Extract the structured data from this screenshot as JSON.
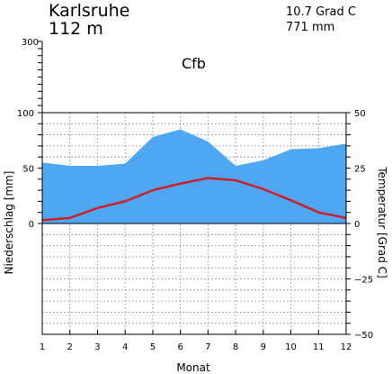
{
  "header": {
    "station": "Karlsruhe",
    "elevation": "112  m",
    "mean_temperature": "10.7  Grad C",
    "annual_precipitation": "771 mm",
    "climate_class": "Cfb"
  },
  "chart_data": {
    "type": "area",
    "categories": [
      1,
      2,
      3,
      4,
      5,
      6,
      7,
      8,
      9,
      10,
      11,
      12
    ],
    "xlabel": "Monat",
    "ylabel_left": "Niederschlag [mm]",
    "ylabel_right": "Temperatur [Grad C]",
    "left_axis": {
      "range": [
        0,
        100
      ],
      "ticks": [
        0,
        50,
        100
      ],
      "upper_range": [
        100,
        300
      ],
      "upper_tick": 300
    },
    "right_axis": {
      "range": [
        -50,
        50
      ],
      "ticks": [
        -50,
        -25,
        0,
        25,
        50
      ]
    },
    "grid": "on",
    "series": [
      {
        "type": "area",
        "axis": "left",
        "color": "#4fa6f2",
        "values": [
          55,
          52,
          52,
          54,
          78,
          85,
          74,
          52,
          57,
          67,
          68,
          72
        ]
      },
      {
        "type": "line",
        "axis": "right",
        "color": "#cc1f2a",
        "values": [
          1.5,
          2.5,
          7,
          10,
          15,
          18,
          20.5,
          19.5,
          15.5,
          10.5,
          5,
          2.5
        ]
      }
    ]
  }
}
